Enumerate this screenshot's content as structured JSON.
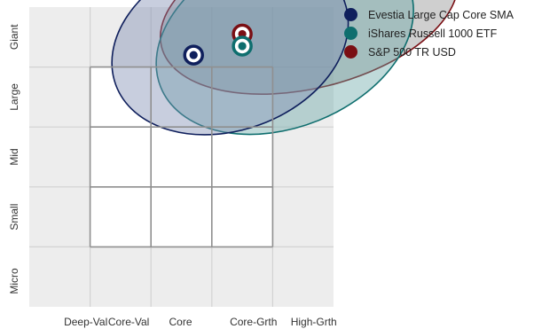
{
  "chart_data": {
    "type": "scatter",
    "title": "",
    "xlabel": "",
    "ylabel": "",
    "x_categories": [
      "Deep-Val",
      "Core-Val",
      "Core",
      "Core-Grth",
      "High-Grth"
    ],
    "y_categories": [
      "Micro",
      "Small",
      "Mid",
      "Large",
      "Giant"
    ],
    "xlim": [
      -2.5,
      2.5
    ],
    "ylim": [
      -2.5,
      2.5
    ],
    "grid": true,
    "legend_position": "top-right",
    "series": [
      {
        "name": "Evestia Large Cap Core SMA",
        "color": "#0f1f5c",
        "fill": "#7d8bb0",
        "centroid": {
          "x": 0.2,
          "y": 1.7
        },
        "ellipse": {
          "cx": 0.8,
          "cy": 1.9,
          "rx": 2.0,
          "ry": 1.45,
          "rotation_deg": -20
        }
      },
      {
        "name": "iShares Russell 1000 ETF",
        "color": "#0e6e6e",
        "fill": "#6aa6a8",
        "centroid": {
          "x": 1.0,
          "y": 1.85
        },
        "ellipse": {
          "cx": 1.7,
          "cy": 2.0,
          "rx": 2.2,
          "ry": 1.5,
          "rotation_deg": -22
        }
      },
      {
        "name": "S&P 500 TR USD",
        "color": "#7a0f14",
        "fill": "#8c8c8c",
        "centroid": {
          "x": 1.0,
          "y": 2.05
        },
        "ellipse": {
          "cx": 2.1,
          "cy": 2.45,
          "rx": 2.5,
          "ry": 1.3,
          "rotation_deg": -14
        }
      }
    ]
  }
}
